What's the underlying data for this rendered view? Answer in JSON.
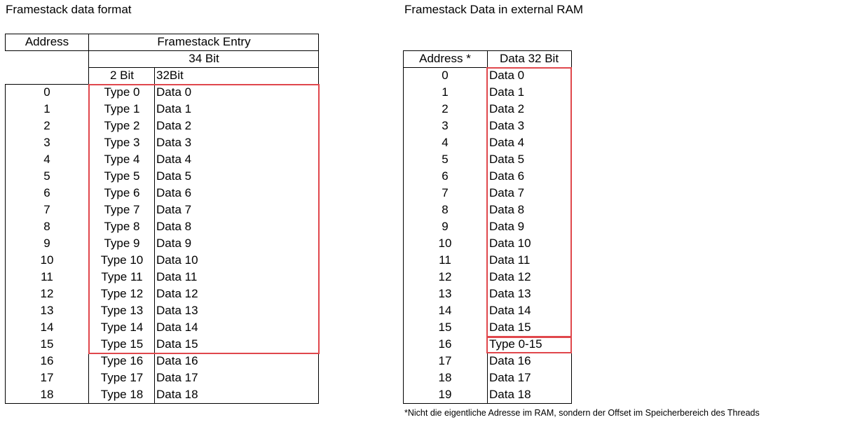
{
  "left": {
    "title": "Framestack data format",
    "headers": {
      "address": "Address",
      "entry": "Framestack Entry",
      "width": "34 Bit",
      "type_bits": "2 Bit",
      "data_bits": "32Bit"
    },
    "rows": [
      {
        "address": "0",
        "type": "Type 0",
        "data": "Data 0"
      },
      {
        "address": "1",
        "type": "Type 1",
        "data": "Data 1"
      },
      {
        "address": "2",
        "type": "Type 2",
        "data": "Data 2"
      },
      {
        "address": "3",
        "type": "Type 3",
        "data": "Data 3"
      },
      {
        "address": "4",
        "type": "Type 4",
        "data": "Data 4"
      },
      {
        "address": "5",
        "type": "Type 5",
        "data": "Data 5"
      },
      {
        "address": "6",
        "type": "Type 6",
        "data": "Data 6"
      },
      {
        "address": "7",
        "type": "Type 7",
        "data": "Data 7"
      },
      {
        "address": "8",
        "type": "Type 8",
        "data": "Data 8"
      },
      {
        "address": "9",
        "type": "Type 9",
        "data": "Data 9"
      },
      {
        "address": "10",
        "type": "Type 10",
        "data": "Data 10"
      },
      {
        "address": "11",
        "type": "Type 11",
        "data": "Data 11"
      },
      {
        "address": "12",
        "type": "Type 12",
        "data": "Data 12"
      },
      {
        "address": "13",
        "type": "Type 13",
        "data": "Data 13"
      },
      {
        "address": "14",
        "type": "Type 14",
        "data": "Data 14"
      },
      {
        "address": "15",
        "type": "Type 15",
        "data": "Data 15"
      },
      {
        "address": "16",
        "type": "Type 16",
        "data": "Data 16"
      },
      {
        "address": "17",
        "type": "Type 17",
        "data": "Data 17"
      },
      {
        "address": "18",
        "type": "Type 18",
        "data": "Data 18"
      }
    ]
  },
  "right": {
    "title": "Framestack Data in external RAM",
    "headers": {
      "address": "Address *",
      "data": "Data 32 Bit"
    },
    "rows": [
      {
        "address": "0",
        "data": "Data 0"
      },
      {
        "address": "1",
        "data": "Data 1"
      },
      {
        "address": "2",
        "data": "Data 2"
      },
      {
        "address": "3",
        "data": "Data 3"
      },
      {
        "address": "4",
        "data": "Data 4"
      },
      {
        "address": "5",
        "data": "Data 5"
      },
      {
        "address": "6",
        "data": "Data 6"
      },
      {
        "address": "7",
        "data": "Data 7"
      },
      {
        "address": "8",
        "data": "Data 8"
      },
      {
        "address": "9",
        "data": "Data 9"
      },
      {
        "address": "10",
        "data": "Data 10"
      },
      {
        "address": "11",
        "data": "Data 11"
      },
      {
        "address": "12",
        "data": "Data 12"
      },
      {
        "address": "13",
        "data": "Data 13"
      },
      {
        "address": "14",
        "data": "Data 14"
      },
      {
        "address": "15",
        "data": "Data 15"
      },
      {
        "address": "16",
        "data": "Type 0-15"
      },
      {
        "address": "17",
        "data": "Data 16"
      },
      {
        "address": "18",
        "data": "Data 17"
      },
      {
        "address": "19",
        "data": "Data 18"
      }
    ],
    "footnote": "*Nicht die eigentliche Adresse im RAM, sondern der Offset im Speicherbereich des Threads"
  },
  "highlight_color": "#e0474c"
}
